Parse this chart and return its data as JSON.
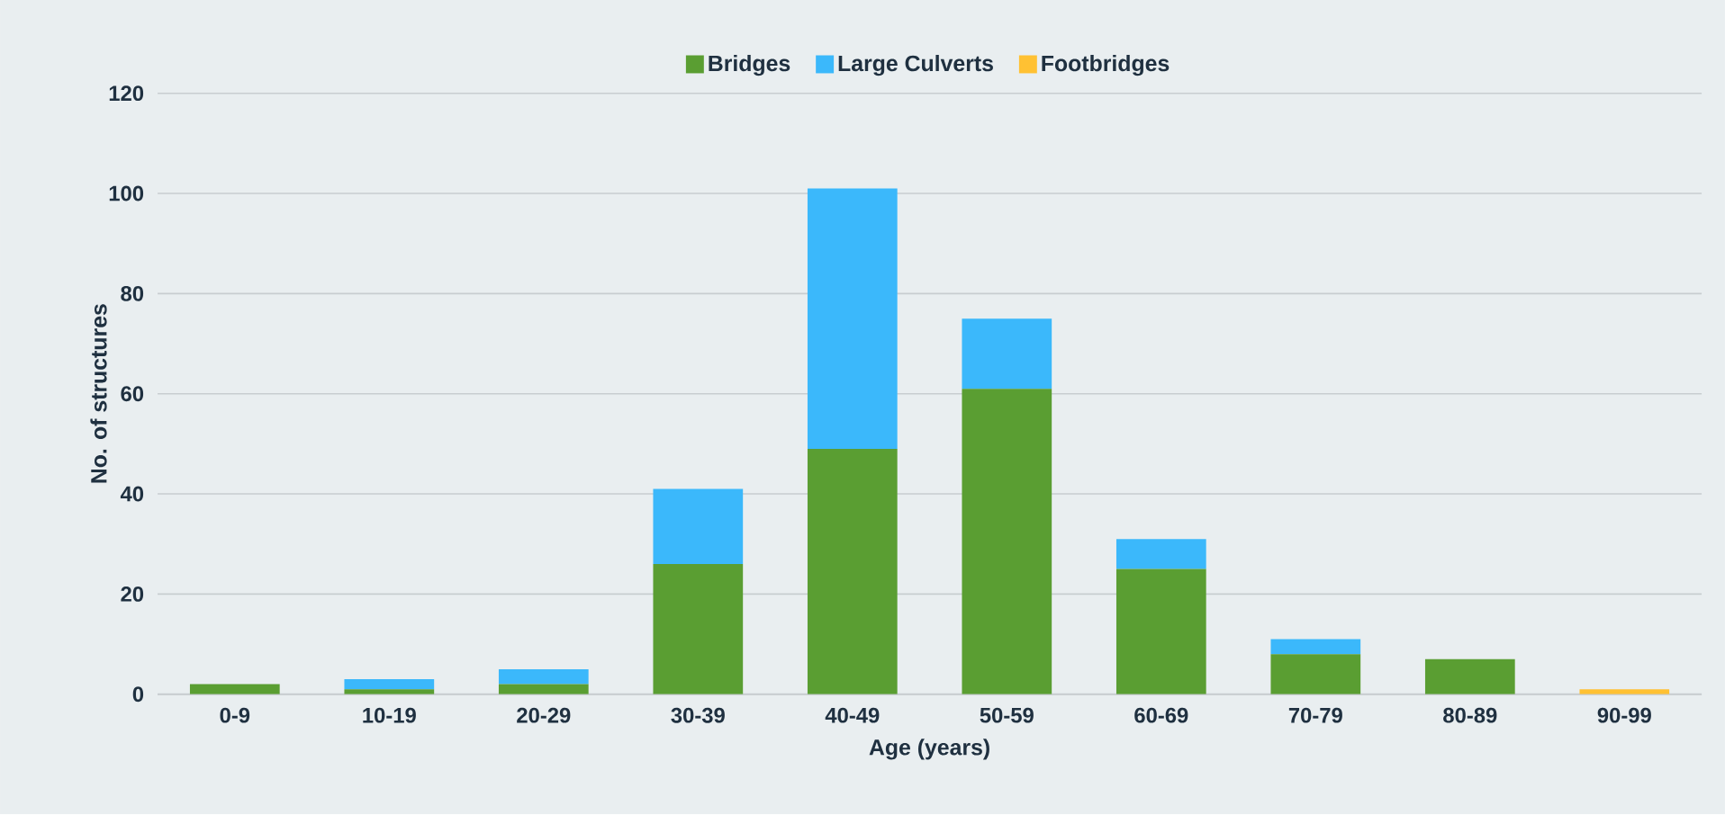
{
  "chart_data": {
    "type": "bar",
    "stacked": true,
    "xlabel": "Age (years)",
    "ylabel": "No. of structures",
    "categories": [
      "0-9",
      "10-19",
      "20-29",
      "30-39",
      "40-49",
      "50-59",
      "60-69",
      "70-79",
      "80-89",
      "90-99"
    ],
    "series": [
      {
        "name": "Bridges",
        "color": "#5a9e32",
        "values": [
          2,
          1,
          2,
          26,
          49,
          61,
          25,
          8,
          7,
          0
        ]
      },
      {
        "name": "Large Culverts",
        "color": "#3bb8fb",
        "values": [
          0,
          2,
          3,
          15,
          52,
          14,
          6,
          3,
          0,
          0
        ]
      },
      {
        "name": "Footbridges",
        "color": "#ffc133",
        "values": [
          0,
          0,
          0,
          0,
          0,
          0,
          0,
          0,
          0,
          1
        ]
      }
    ],
    "ylim": [
      0,
      120
    ],
    "yticks": [
      0,
      20,
      40,
      60,
      80,
      100,
      120
    ],
    "grid": "y",
    "legend": "top"
  }
}
